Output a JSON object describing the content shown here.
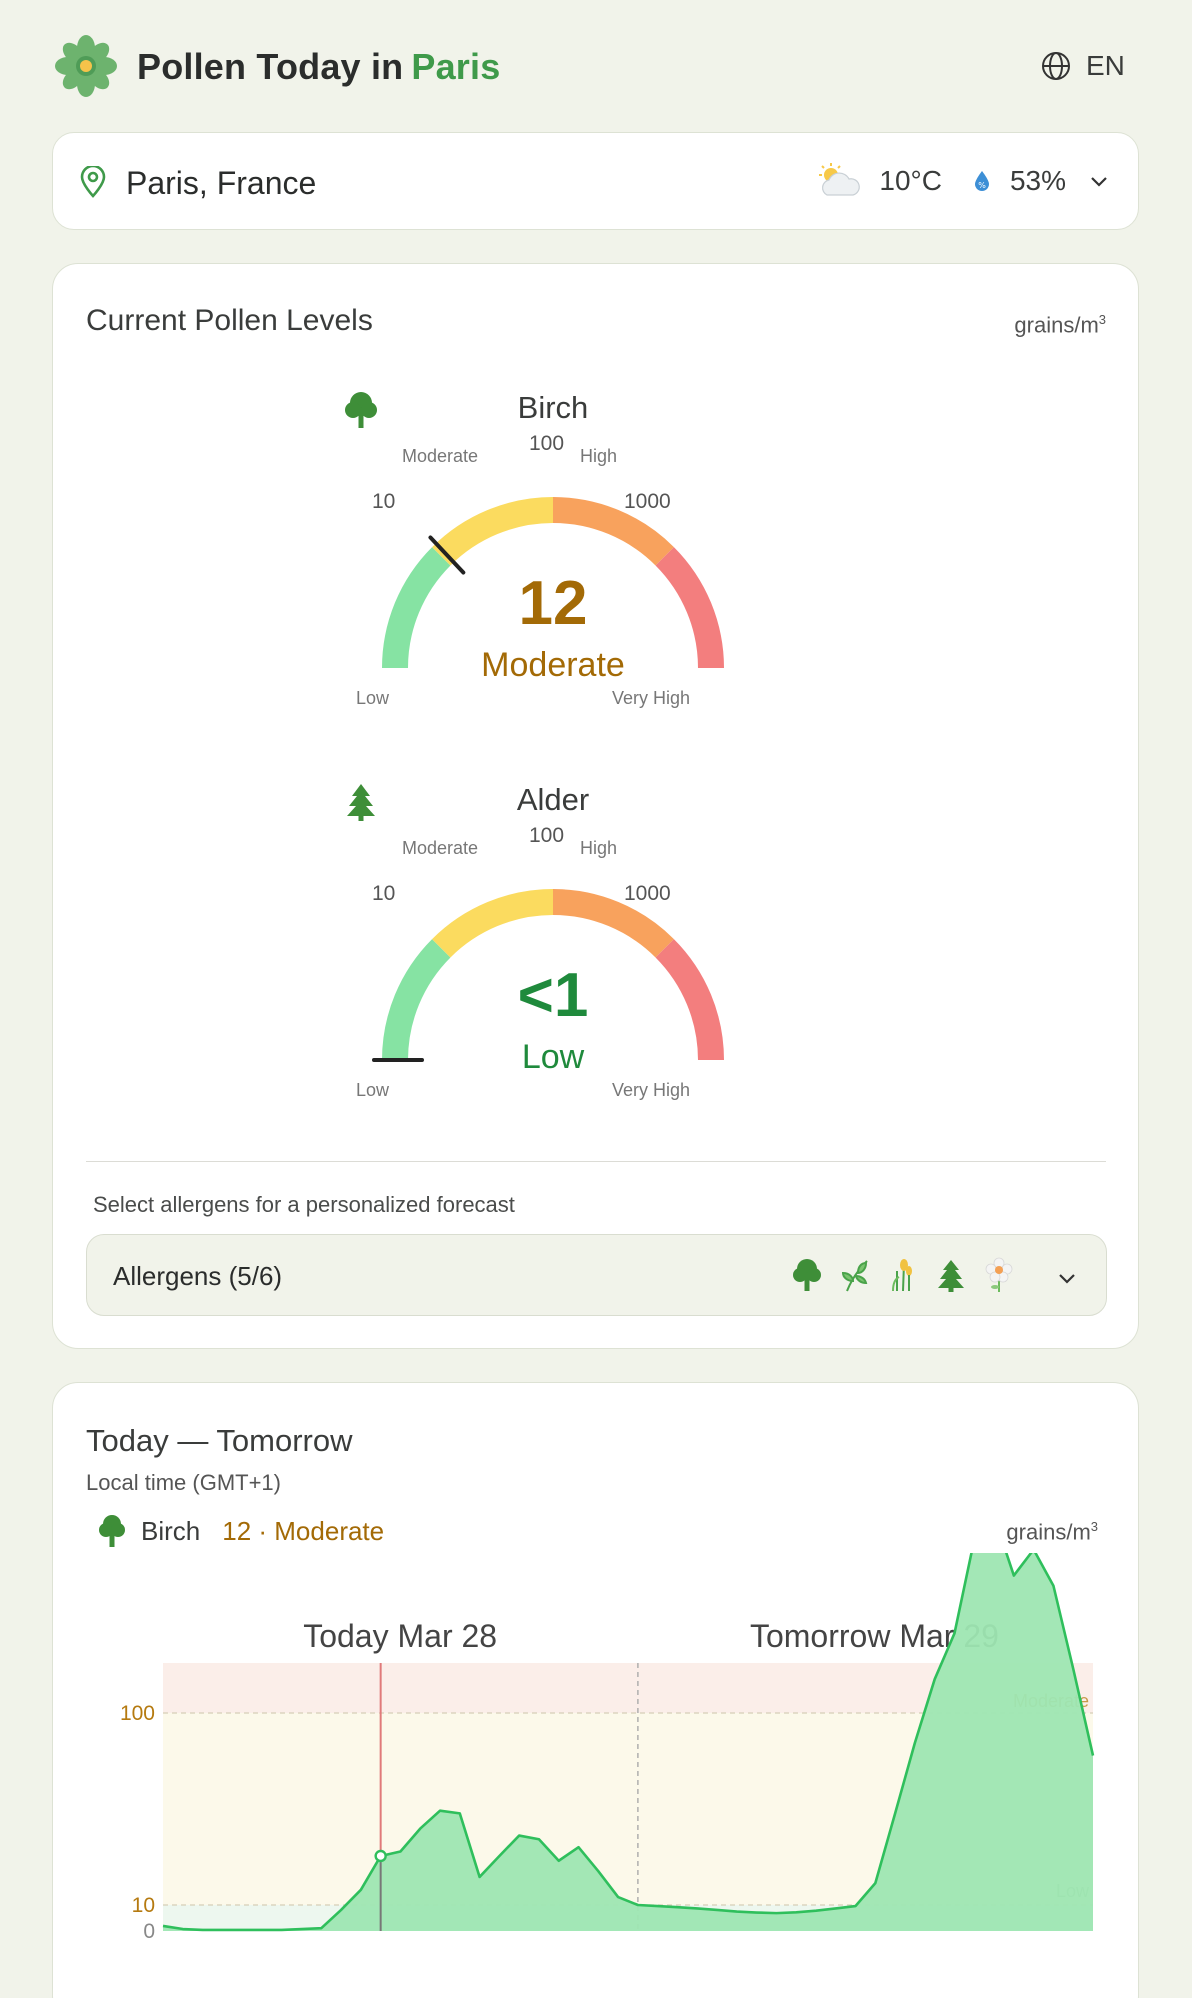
{
  "header": {
    "title": "Pollen Today in",
    "city": "Paris",
    "language": "EN",
    "icons": {
      "logo": "flower-icon",
      "language": "globe-icon"
    }
  },
  "location": {
    "name": "Paris, France",
    "temperature": "10°C",
    "humidity": "53%",
    "icons": {
      "pin": "map-pin-icon",
      "weather": "partly-cloudy-icon",
      "humidity": "water-drop-icon",
      "expand": "chevron-down-icon"
    }
  },
  "current": {
    "title": "Current Pollen Levels",
    "unit": "grains/m",
    "unit_sup": "3",
    "scale": {
      "labels": {
        "low": "Low",
        "moderate": "Moderate",
        "high": "High",
        "very_high": "Very High"
      },
      "ticks": [
        "10",
        "100",
        "1000"
      ]
    },
    "gauges": [
      {
        "name": "Birch",
        "value": "12",
        "level": "Moderate",
        "level_color": "#a36a06",
        "icon": "deciduous-tree-icon",
        "needle_fraction": 0.26
      },
      {
        "name": "Alder",
        "value": "<1",
        "level": "Low",
        "level_color": "#1f8a3c",
        "icon": "conifer-tree-icon",
        "needle_fraction": 0.0
      }
    ],
    "colors": {
      "low": "#86e3a3",
      "moderate": "#fbdb5f",
      "high": "#f8a25d",
      "very_high": "#f37e7e"
    },
    "select_label": "Select allergens for a personalized forecast",
    "allergens_label": "Allergens (5/6)",
    "allergen_icons": [
      "deciduous-tree-icon",
      "plant-icon",
      "grass-icon",
      "conifer-tree-icon",
      "daisy-icon"
    ]
  },
  "forecast": {
    "title": "Today — Tomorrow",
    "subtitle": "Local time (GMT+1)",
    "allergen": "Birch",
    "allergen_level": "12 · Moderate",
    "unit": "grains/m",
    "unit_sup": "3",
    "chart_data": {
      "type": "area",
      "title": "",
      "day_labels": [
        "Today Mar 28",
        "Tomorrow Mar 29"
      ],
      "x_hours": [
        0,
        1,
        2,
        3,
        4,
        5,
        6,
        7,
        8,
        9,
        10,
        11,
        12,
        13,
        14,
        15,
        16,
        17,
        18,
        19,
        20,
        21,
        22,
        23,
        24,
        25,
        26,
        27,
        28,
        29,
        30,
        31,
        32,
        33,
        34,
        35,
        36,
        37,
        38,
        39,
        40,
        41,
        42,
        43,
        44,
        45,
        46,
        47
      ],
      "series": [
        {
          "values": [
            0.6,
            0.2,
            0.1,
            0.1,
            0.1,
            0.1,
            0.1,
            0.2,
            0.3,
            6,
            12,
            18,
            19,
            25,
            31,
            30,
            14,
            18,
            23,
            22,
            17,
            20,
            15,
            11,
            10,
            9,
            8,
            7,
            6,
            5,
            4.5,
            4.2,
            4.6,
            5.5,
            7,
            9,
            13,
            30,
            70,
            150,
            260,
            800,
            1060,
            520,
            710,
            460,
            170,
            60
          ],
          "color": "#2fbf5c"
        }
      ],
      "yscale": "log",
      "yticks": [
        "0",
        "10",
        "100"
      ],
      "ylim": [
        0,
        150
      ],
      "bands": {
        "moderate_label": "Moderate",
        "low_label": "Low"
      },
      "current_hour": 11
    }
  }
}
